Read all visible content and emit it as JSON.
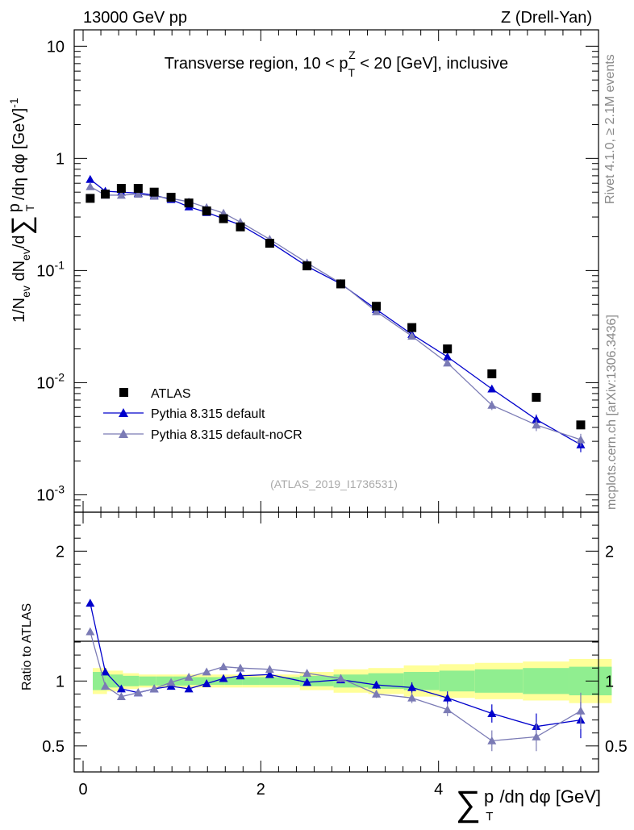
{
  "header": {
    "left": "13000 GeV pp",
    "right": "Z (Drell-Yan)"
  },
  "side_labels": {
    "rivet": "Rivet 4.1.0, ≥ 2.1M events",
    "mcplots": "mcplots.cern.ch [arXiv:1306.3436]"
  },
  "chart_data": {
    "type": "scatter",
    "title": "Transverse region, 10 < p_T^Z < 20 [GeV], inclusive",
    "title_parts": {
      "pre": "Transverse region, 10 < p",
      "sub": "T",
      "sup": "Z",
      "post": " < 20 [GeV], inclusive"
    },
    "analysis_id": "(ATLAS_2019_I1736531)",
    "xlabel": "∑ p_T / dη dφ [GeV]",
    "xlabel_parts": {
      "sum": "∑",
      "p": "p",
      "sub": "T",
      "rest": "/dη dφ [GeV]"
    },
    "ylabel": "1/N_ev dN_ev/d∑ p_T /dη dφ [GeV]^-1",
    "ylabel_parts": {
      "a": "1/N",
      "a_sub": "ev",
      "b": " dN",
      "b_sub": "ev",
      "c": "/d",
      "sum": "∑",
      "p": "p",
      "p_sub": "T",
      "d": " /dη dφ  [GeV]",
      "d_sup": "-1"
    },
    "ratio_ylabel": "Ratio to ATLAS",
    "xlim": [
      -0.1,
      5.8
    ],
    "ylim": [
      0.0007,
      14
    ],
    "yscale": "log",
    "ratio_ylim": [
      0.3,
      2.3
    ],
    "x_ticks": [
      0,
      2,
      4
    ],
    "x_tick_labels": [
      "0",
      "2",
      "4"
    ],
    "y_ticks": [
      0.001,
      0.01,
      0.1,
      1,
      10
    ],
    "y_tick_labels": [
      {
        "base": "10",
        "exp": "-3"
      },
      {
        "base": "10",
        "exp": "-2"
      },
      {
        "base": "10",
        "exp": "-1"
      },
      {
        "base": "1",
        "exp": ""
      },
      {
        "base": "10",
        "exp": ""
      }
    ],
    "ratio_ticks": [
      0.5,
      1,
      2
    ],
    "ratio_tick_labels": [
      "0.5",
      "1",
      "2"
    ],
    "legend": [
      {
        "label": "ATLAS",
        "color": "#000000",
        "marker": "square"
      },
      {
        "label": "Pythia 8.315 default",
        "color": "#0000cc",
        "marker": "triangle"
      },
      {
        "label": "Pythia 8.315 default-noCR",
        "color": "#7b7bb5",
        "marker": "triangle"
      }
    ],
    "legend_position": "lower-left",
    "x": [
      0.08,
      0.25,
      0.43,
      0.62,
      0.8,
      0.99,
      1.19,
      1.39,
      1.58,
      1.77,
      2.1,
      2.52,
      2.9,
      3.3,
      3.7,
      4.1,
      4.6,
      5.1,
      5.6
    ],
    "bins": [
      0.0,
      0.16,
      0.34,
      0.52,
      0.71,
      0.9,
      1.09,
      1.29,
      1.48,
      1.68,
      1.87,
      2.33,
      2.71,
      3.1,
      3.5,
      3.9,
      4.3,
      4.84,
      5.36,
      5.84
    ],
    "series": [
      {
        "name": "ATLAS",
        "values": [
          0.44,
          0.48,
          0.54,
          0.54,
          0.5,
          0.45,
          0.4,
          0.34,
          0.29,
          0.245,
          0.175,
          0.11,
          0.076,
          0.048,
          0.031,
          0.02,
          0.012,
          0.0074,
          0.0042
        ]
      },
      {
        "name": "Pythia 8.315 default",
        "values": [
          0.65,
          0.51,
          0.5,
          0.49,
          0.47,
          0.43,
          0.37,
          0.33,
          0.29,
          0.255,
          0.18,
          0.109,
          0.076,
          0.045,
          0.027,
          0.017,
          0.0088,
          0.0047,
          0.0028
        ],
        "errors": [
          0.02,
          0.01,
          0.01,
          0.01,
          0.01,
          0.01,
          0.01,
          0.008,
          0.006,
          0.005,
          0.004,
          0.002,
          0.0015,
          0.001,
          0.0008,
          0.0007,
          0.0006,
          0.0005,
          0.0004
        ]
      },
      {
        "name": "Pythia 8.315 default-noCR",
        "values": [
          0.56,
          0.47,
          0.47,
          0.48,
          0.46,
          0.44,
          0.41,
          0.365,
          0.325,
          0.27,
          0.19,
          0.117,
          0.077,
          0.043,
          0.026,
          0.015,
          0.0063,
          0.0042,
          0.0031
        ],
        "errors": [
          0.02,
          0.01,
          0.01,
          0.01,
          0.01,
          0.01,
          0.01,
          0.008,
          0.006,
          0.005,
          0.004,
          0.002,
          0.0015,
          0.001,
          0.0008,
          0.0007,
          0.0006,
          0.0005,
          0.0004
        ]
      }
    ],
    "ratio_series": [
      {
        "name": "Pythia 8.315 default",
        "values": [
          1.6,
          1.07,
          0.94,
          0.91,
          0.94,
          0.96,
          0.94,
          0.98,
          1.02,
          1.04,
          1.05,
          0.99,
          1.01,
          0.97,
          0.95,
          0.87,
          0.75,
          0.65,
          0.7
        ],
        "errors": [
          0.02,
          0.01,
          0.01,
          0.01,
          0.01,
          0.01,
          0.01,
          0.015,
          0.015,
          0.015,
          0.015,
          0.02,
          0.02,
          0.03,
          0.04,
          0.05,
          0.07,
          0.1,
          0.14
        ]
      },
      {
        "name": "Pythia 8.315 default-noCR",
        "values": [
          1.38,
          0.96,
          0.88,
          0.91,
          0.94,
          0.99,
          1.03,
          1.07,
          1.11,
          1.1,
          1.09,
          1.06,
          1.02,
          0.9,
          0.87,
          0.78,
          0.54,
          0.57,
          0.77
        ],
        "errors": [
          0.02,
          0.01,
          0.01,
          0.01,
          0.01,
          0.02,
          0.02,
          0.02,
          0.02,
          0.02,
          0.02,
          0.02,
          0.03,
          0.03,
          0.04,
          0.05,
          0.08,
          0.11,
          0.14
        ]
      }
    ],
    "ratio_band_green": [
      0.07,
      0.05,
      0.04,
      0.035,
      0.035,
      0.035,
      0.03,
      0.03,
      0.03,
      0.03,
      0.03,
      0.04,
      0.05,
      0.06,
      0.07,
      0.08,
      0.09,
      0.1,
      0.11
    ],
    "ratio_band_yellow": [
      0.1,
      0.08,
      0.06,
      0.05,
      0.05,
      0.05,
      0.05,
      0.05,
      0.05,
      0.05,
      0.05,
      0.07,
      0.09,
      0.1,
      0.12,
      0.13,
      0.14,
      0.15,
      0.17
    ],
    "colors": {
      "band_green": "#90ee90",
      "band_yellow": "#ffff99",
      "data": "#000000",
      "default": "#0000cc",
      "noCR": "#7b7bb5"
    }
  }
}
